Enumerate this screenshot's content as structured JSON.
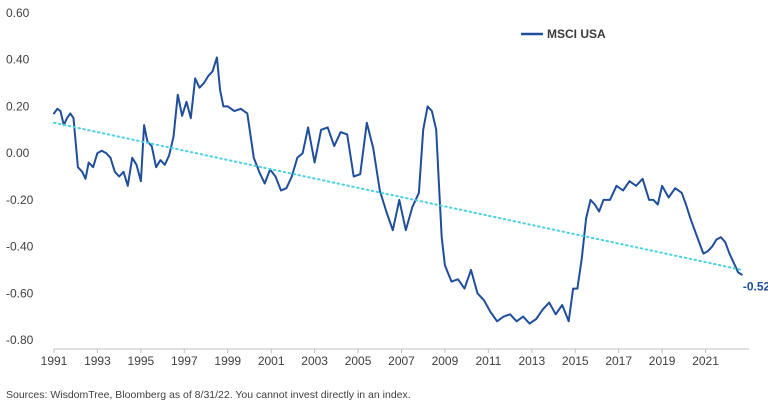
{
  "footer": {
    "source_note": "Sources: WisdomTree, Bloomberg as of 8/31/22. You cannot invest directly in an index."
  },
  "colors": {
    "series": "#1f4e9c",
    "trend": "#4dd0e1",
    "axis": "#bfbfbf",
    "text": "#404040"
  },
  "chart_data": {
    "type": "line",
    "title": "",
    "xlabel": "",
    "ylabel": "",
    "legend_position": "top-right",
    "grid": false,
    "xlim": [
      1991,
      2023
    ],
    "ylim": [
      -0.8,
      0.6
    ],
    "x_ticks": [
      "1991",
      "1993",
      "1995",
      "1997",
      "1999",
      "2001",
      "2003",
      "2005",
      "2007",
      "2009",
      "2011",
      "2013",
      "2015",
      "2017",
      "2019",
      "2021"
    ],
    "y_ticks": [
      "0.60",
      "0.40",
      "0.20",
      "0.00",
      "-0.20",
      "-0.40",
      "-0.60",
      "-0.80"
    ],
    "end_label": "-0.52",
    "series": [
      {
        "name": "MSCI USA",
        "style": "solid",
        "x": [
          1991.0,
          1991.15,
          1991.3,
          1991.45,
          1991.6,
          1991.75,
          1991.9,
          1992.1,
          1992.3,
          1992.45,
          1992.6,
          1992.8,
          1993.0,
          1993.2,
          1993.4,
          1993.6,
          1993.8,
          1994.0,
          1994.2,
          1994.4,
          1994.6,
          1994.8,
          1995.0,
          1995.15,
          1995.3,
          1995.5,
          1995.7,
          1995.9,
          1996.1,
          1996.3,
          1996.5,
          1996.7,
          1996.9,
          1997.1,
          1997.3,
          1997.5,
          1997.7,
          1997.9,
          1998.1,
          1998.3,
          1998.5,
          1998.65,
          1998.8,
          1999.0,
          1999.3,
          1999.6,
          1999.9,
          2000.2,
          2000.45,
          2000.7,
          2000.95,
          2001.2,
          2001.45,
          2001.7,
          2001.95,
          2002.2,
          2002.45,
          2002.7,
          2003.0,
          2003.3,
          2003.6,
          2003.9,
          2004.2,
          2004.5,
          2004.8,
          2005.1,
          2005.4,
          2005.7,
          2006.0,
          2006.3,
          2006.6,
          2006.9,
          2007.2,
          2007.5,
          2007.8,
          2008.0,
          2008.2,
          2008.4,
          2008.6,
          2008.75,
          2008.85,
          2009.0,
          2009.3,
          2009.6,
          2009.9,
          2010.2,
          2010.5,
          2010.8,
          2011.1,
          2011.4,
          2011.7,
          2012.0,
          2012.3,
          2012.6,
          2012.9,
          2013.2,
          2013.5,
          2013.8,
          2014.1,
          2014.4,
          2014.7,
          2014.9,
          2015.1,
          2015.3,
          2015.5,
          2015.7,
          2015.9,
          2016.1,
          2016.3,
          2016.6,
          2016.9,
          2017.2,
          2017.5,
          2017.8,
          2018.1,
          2018.4,
          2018.6,
          2018.8,
          2019.0,
          2019.3,
          2019.6,
          2019.9,
          2020.1,
          2020.3,
          2020.5,
          2020.7,
          2020.9,
          2021.1,
          2021.3,
          2021.5,
          2021.7,
          2021.9,
          2022.1,
          2022.3,
          2022.5,
          2022.67
        ],
        "y": [
          0.17,
          0.19,
          0.18,
          0.12,
          0.15,
          0.17,
          0.15,
          -0.06,
          -0.08,
          -0.11,
          -0.04,
          -0.06,
          0.0,
          0.01,
          0.0,
          -0.02,
          -0.08,
          -0.1,
          -0.08,
          -0.14,
          -0.02,
          -0.05,
          -0.12,
          0.12,
          0.05,
          0.03,
          -0.06,
          -0.03,
          -0.05,
          -0.01,
          0.07,
          0.25,
          0.16,
          0.22,
          0.15,
          0.32,
          0.28,
          0.3,
          0.33,
          0.35,
          0.41,
          0.27,
          0.2,
          0.2,
          0.18,
          0.19,
          0.17,
          -0.02,
          -0.08,
          -0.13,
          -0.07,
          -0.1,
          -0.16,
          -0.15,
          -0.1,
          -0.02,
          0.0,
          0.11,
          -0.04,
          0.1,
          0.11,
          0.03,
          0.09,
          0.08,
          -0.1,
          -0.09,
          0.13,
          0.02,
          -0.16,
          -0.25,
          -0.33,
          -0.2,
          -0.33,
          -0.23,
          -0.17,
          0.1,
          0.2,
          0.18,
          0.1,
          -0.18,
          -0.36,
          -0.48,
          -0.55,
          -0.54,
          -0.58,
          -0.5,
          -0.6,
          -0.63,
          -0.68,
          -0.72,
          -0.7,
          -0.69,
          -0.72,
          -0.7,
          -0.73,
          -0.71,
          -0.67,
          -0.64,
          -0.69,
          -0.65,
          -0.72,
          -0.58,
          -0.58,
          -0.45,
          -0.28,
          -0.2,
          -0.22,
          -0.25,
          -0.2,
          -0.2,
          -0.14,
          -0.16,
          -0.12,
          -0.14,
          -0.11,
          -0.2,
          -0.2,
          -0.22,
          -0.14,
          -0.19,
          -0.15,
          -0.17,
          -0.22,
          -0.28,
          -0.33,
          -0.38,
          -0.43,
          -0.42,
          -0.4,
          -0.37,
          -0.36,
          -0.38,
          -0.43,
          -0.47,
          -0.51,
          -0.52
        ]
      },
      {
        "style": "dotted",
        "x": [
          1991.0,
          2022.67
        ],
        "y": [
          0.13,
          -0.5
        ]
      }
    ]
  }
}
